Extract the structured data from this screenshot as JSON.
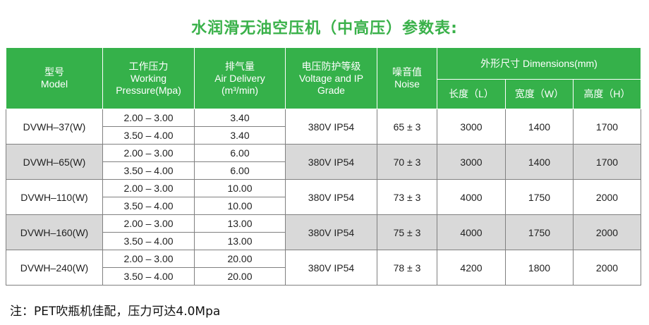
{
  "title": "水润滑无油空压机（中高压）参数表:",
  "headers": {
    "model": [
      "型号",
      "Model"
    ],
    "pressure": [
      "工作压力",
      "Working",
      "Pressure(Mpa)"
    ],
    "air": [
      "排气量",
      "Air Delivery",
      "(m³/min)"
    ],
    "voltage": [
      "电压防护等级",
      "Voltage and IP",
      "Grade"
    ],
    "noise": [
      "噪音值",
      "Noise"
    ],
    "dims": "外形尺寸 Dimensions(mm)",
    "length": "长度（L）",
    "width": "宽度（W）",
    "height": "高度（H）"
  },
  "rows": [
    {
      "model": "DVWH–37(W)",
      "pressures": [
        "2.00 – 3.00",
        "3.50 – 4.00"
      ],
      "air": [
        "3.40",
        "3.40"
      ],
      "voltage": "380V IP54",
      "noise": "65 ± 3",
      "length": "3000",
      "width": "1400",
      "height": "1700",
      "shade": false
    },
    {
      "model": "DVWH–65(W)",
      "pressures": [
        "2.00 – 3.00",
        "3.50 – 4.00"
      ],
      "air": [
        "6.00",
        "6.00"
      ],
      "voltage": "380V IP54",
      "noise": "70 ± 3",
      "length": "3000",
      "width": "1400",
      "height": "1700",
      "shade": true
    },
    {
      "model": "DVWH–110(W)",
      "pressures": [
        "2.00 – 3.00",
        "3.50 – 4.00"
      ],
      "air": [
        "10.00",
        "10.00"
      ],
      "voltage": "380V IP54",
      "noise": "73 ± 3",
      "length": "4000",
      "width": "1750",
      "height": "2000",
      "shade": false
    },
    {
      "model": "DVWH–160(W)",
      "pressures": [
        "2.00 – 3.00",
        "3.50 – 4.00"
      ],
      "air": [
        "13.00",
        "13.00"
      ],
      "voltage": "380V IP54",
      "noise": "75 ± 3",
      "length": "4000",
      "width": "1750",
      "height": "2000",
      "shade": true
    },
    {
      "model": "DVWH–240(W)",
      "pressures": [
        "2.00 – 3.00",
        "3.50 – 4.00"
      ],
      "air": [
        "20.00",
        "20.00"
      ],
      "voltage": "380V IP54",
      "noise": "78 ± 3",
      "length": "4200",
      "width": "1800",
      "height": "2000",
      "shade": false
    }
  ],
  "note": "注：PET吹瓶机佳配，压力可达4.0Mpa",
  "colors": {
    "header_green": "#35b14a",
    "title_green": "#3ab14a",
    "row_gray": "#d9d9d9"
  }
}
